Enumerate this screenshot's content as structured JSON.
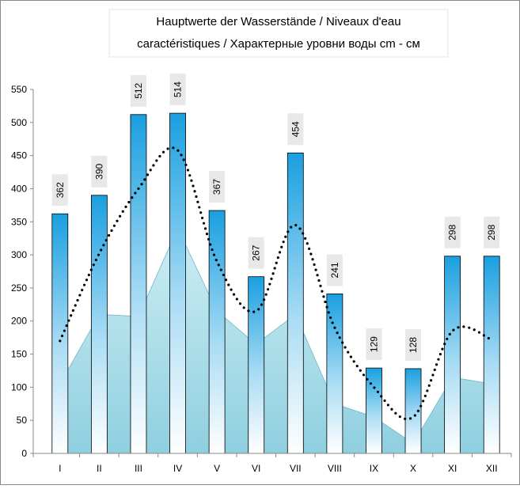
{
  "chart_data": {
    "type": "combo",
    "title": [
      "Hauptwerte der Wasserstände / Niveaux d'eau",
      "caractéristiques / Характерные уровни воды cm - см"
    ],
    "categories": [
      "I",
      "II",
      "III",
      "IV",
      "V",
      "VI",
      "VII",
      "VIII",
      "IX",
      "X",
      "XI",
      "XII"
    ],
    "series": [
      {
        "type": "bar",
        "color": "#1a9fe0",
        "values": [
          362,
          390,
          512,
          514,
          367,
          267,
          454,
          241,
          129,
          128,
          298,
          298
        ]
      },
      {
        "type": "area",
        "color": "#b5e0ea",
        "values": [
          105,
          210,
          207,
          340,
          215,
          165,
          210,
          75,
          55,
          15,
          115,
          105
        ]
      },
      {
        "type": "line",
        "color": "#000000",
        "values": [
          170,
          302,
          400,
          458,
          290,
          215,
          345,
          190,
          100,
          55,
          185,
          172
        ]
      }
    ],
    "ylim": [
      0,
      550
    ],
    "yticks": [
      0,
      50,
      100,
      150,
      200,
      250,
      300,
      350,
      400,
      450,
      500,
      550
    ]
  }
}
